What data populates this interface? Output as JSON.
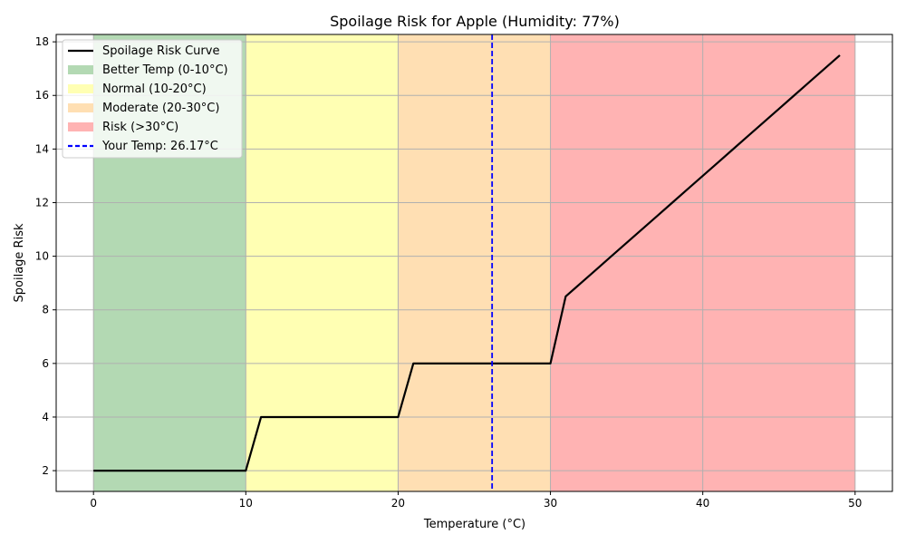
{
  "chart_data": {
    "type": "line",
    "title": "Spoilage Risk for Apple (Humidity: 77%)",
    "xlabel": "Temperature (°C)",
    "ylabel": "Spoilage Risk",
    "xlim": [
      -2.45,
      52.45
    ],
    "ylim": [
      1.225,
      18.275
    ],
    "grid": true,
    "legend_position": "top-left",
    "x_ticks": [
      0,
      10,
      20,
      30,
      40,
      50
    ],
    "y_ticks": [
      2,
      4,
      6,
      8,
      10,
      12,
      14,
      16,
      18
    ],
    "zones": [
      {
        "name": "Better Temp (0-10°C)",
        "x_start": 0,
        "x_end": 10,
        "color": "#b3d9b3"
      },
      {
        "name": "Normal (10-20°C)",
        "x_start": 10,
        "x_end": 20,
        "color": "#ffffb3"
      },
      {
        "name": "Moderate (20-30°C)",
        "x_start": 20,
        "x_end": 30,
        "color": "#ffdfb3"
      },
      {
        "name": "Risk (>30°C)",
        "x_start": 30,
        "x_end": 50,
        "color": "#ffb3b3"
      }
    ],
    "series": [
      {
        "name": "Spoilage Risk Curve",
        "color": "#000000",
        "x": [
          0,
          1,
          2,
          3,
          4,
          5,
          6,
          7,
          8,
          9,
          10,
          11,
          12,
          13,
          14,
          15,
          16,
          17,
          18,
          19,
          20,
          21,
          22,
          23,
          24,
          25,
          26,
          27,
          28,
          29,
          30,
          31,
          32,
          33,
          34,
          35,
          36,
          37,
          38,
          39,
          40,
          41,
          42,
          43,
          44,
          45,
          46,
          47,
          48,
          49
        ],
        "y": [
          2,
          2,
          2,
          2,
          2,
          2,
          2,
          2,
          2,
          2,
          2,
          4,
          4,
          4,
          4,
          4,
          4,
          4,
          4,
          4,
          4,
          6,
          6,
          6,
          6,
          6,
          6,
          6,
          6,
          6,
          6,
          8.5,
          9,
          9.5,
          10,
          10.5,
          11,
          11.5,
          12,
          12.5,
          13,
          13.5,
          14,
          14.5,
          15,
          15.5,
          16,
          16.5,
          17,
          17.5
        ]
      }
    ],
    "reference_line": {
      "name": "Your Temp: 26.17°C",
      "x": 26.17,
      "color": "#0000ff",
      "style": "dashed"
    }
  }
}
